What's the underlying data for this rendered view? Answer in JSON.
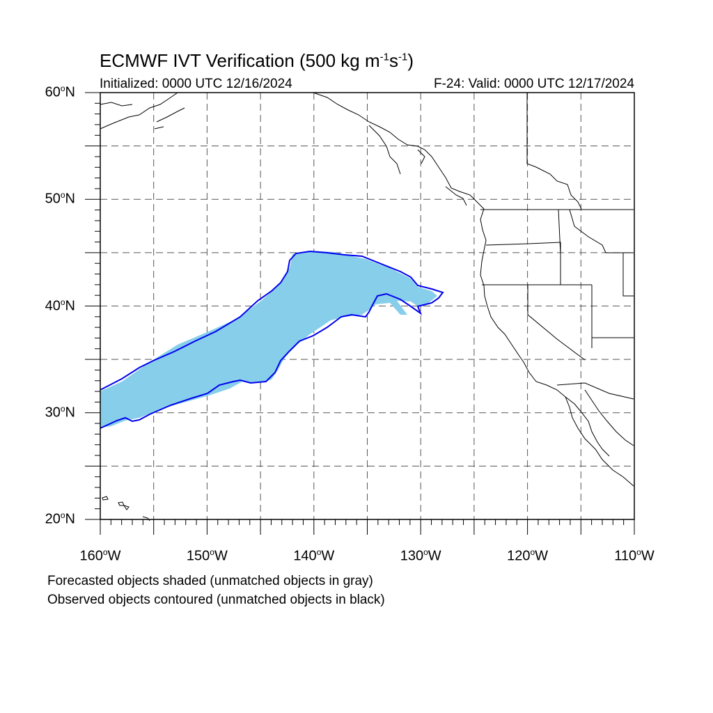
{
  "title": {
    "main": "ECMWF IVT Verification (500 kg m",
    "exp1": "-1",
    "mid": "s",
    "exp2": "-1",
    "end": ")"
  },
  "initialized": "Initialized: 0000 UTC 12/16/2024",
  "valid": "F-24: Valid: 0000 UTC 12/17/2024",
  "map": {
    "lon_range": [
      -160,
      -110
    ],
    "lat_range": [
      20,
      60
    ],
    "grid": "dashed every 5 degrees",
    "lat_labels": [
      {
        "value": 60,
        "num": "60",
        "hem": "N"
      },
      {
        "value": 50,
        "num": "50",
        "hem": "N"
      },
      {
        "value": 40,
        "num": "40",
        "hem": "N"
      },
      {
        "value": 30,
        "num": "30",
        "hem": "N"
      },
      {
        "value": 20,
        "num": "20",
        "hem": "N"
      }
    ],
    "lon_labels": [
      {
        "value": -160,
        "num": "160",
        "hem": "W"
      },
      {
        "value": -150,
        "num": "150",
        "hem": "W"
      },
      {
        "value": -140,
        "num": "140",
        "hem": "W"
      },
      {
        "value": -130,
        "num": "130",
        "hem": "W"
      },
      {
        "value": -120,
        "num": "120",
        "hem": "W"
      },
      {
        "value": -110,
        "num": "110",
        "hem": "W"
      }
    ],
    "colors": {
      "forecast_fill": "#87ceeb",
      "observed_contour": "#0000ee",
      "coastline": "#000000",
      "grid": "#555555"
    }
  },
  "footnotes": {
    "line1": "Forecasted objects shaded (unmatched objects in gray)",
    "line2": "Observed objects contoured (unmatched objects in black)"
  }
}
